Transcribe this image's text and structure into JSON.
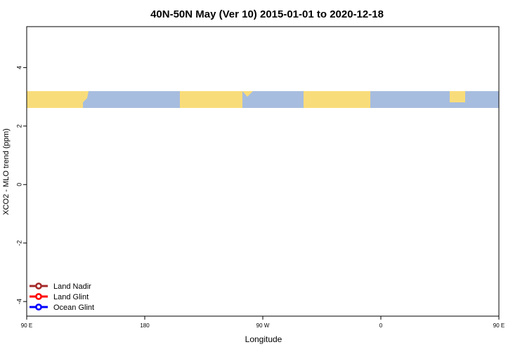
{
  "chart_data": {
    "type": "line",
    "title": "40N-50N May (Ver 10)   2015-01-01 to 2020-12-18",
    "xlabel": "Longitude",
    "ylabel": "XCO2 - MLO trend (ppm)",
    "xlim": [
      90,
      450
    ],
    "ylim": [
      -4.5,
      5.4
    ],
    "x_ticks": [
      {
        "v": 90,
        "label": "90 E"
      },
      {
        "v": 180,
        "label": "180"
      },
      {
        "v": 270,
        "label": "90 W"
      },
      {
        "v": 360,
        "label": "0"
      },
      {
        "v": 450,
        "label": "90 E"
      },
      {
        "v": 540,
        "label": "180"
      }
    ],
    "y_ticks": [
      {
        "v": -4,
        "label": "-4"
      },
      {
        "v": -2,
        "label": "-2"
      },
      {
        "v": 0,
        "label": "0"
      },
      {
        "v": 2,
        "label": "2"
      },
      {
        "v": 4,
        "label": "4"
      }
    ],
    "legend_position": "bottom-left",
    "map_strip": {
      "ocean_color": "#a7bddf",
      "land_color": "#f9dc7a"
    },
    "series": [
      {
        "name": "Land Nadir",
        "color": "#a52a2a",
        "points": []
      },
      {
        "name": "Land Glint",
        "color": "#ff0000",
        "points": []
      },
      {
        "name": "Ocean Glint",
        "color": "#0000ff",
        "points": []
      }
    ]
  }
}
